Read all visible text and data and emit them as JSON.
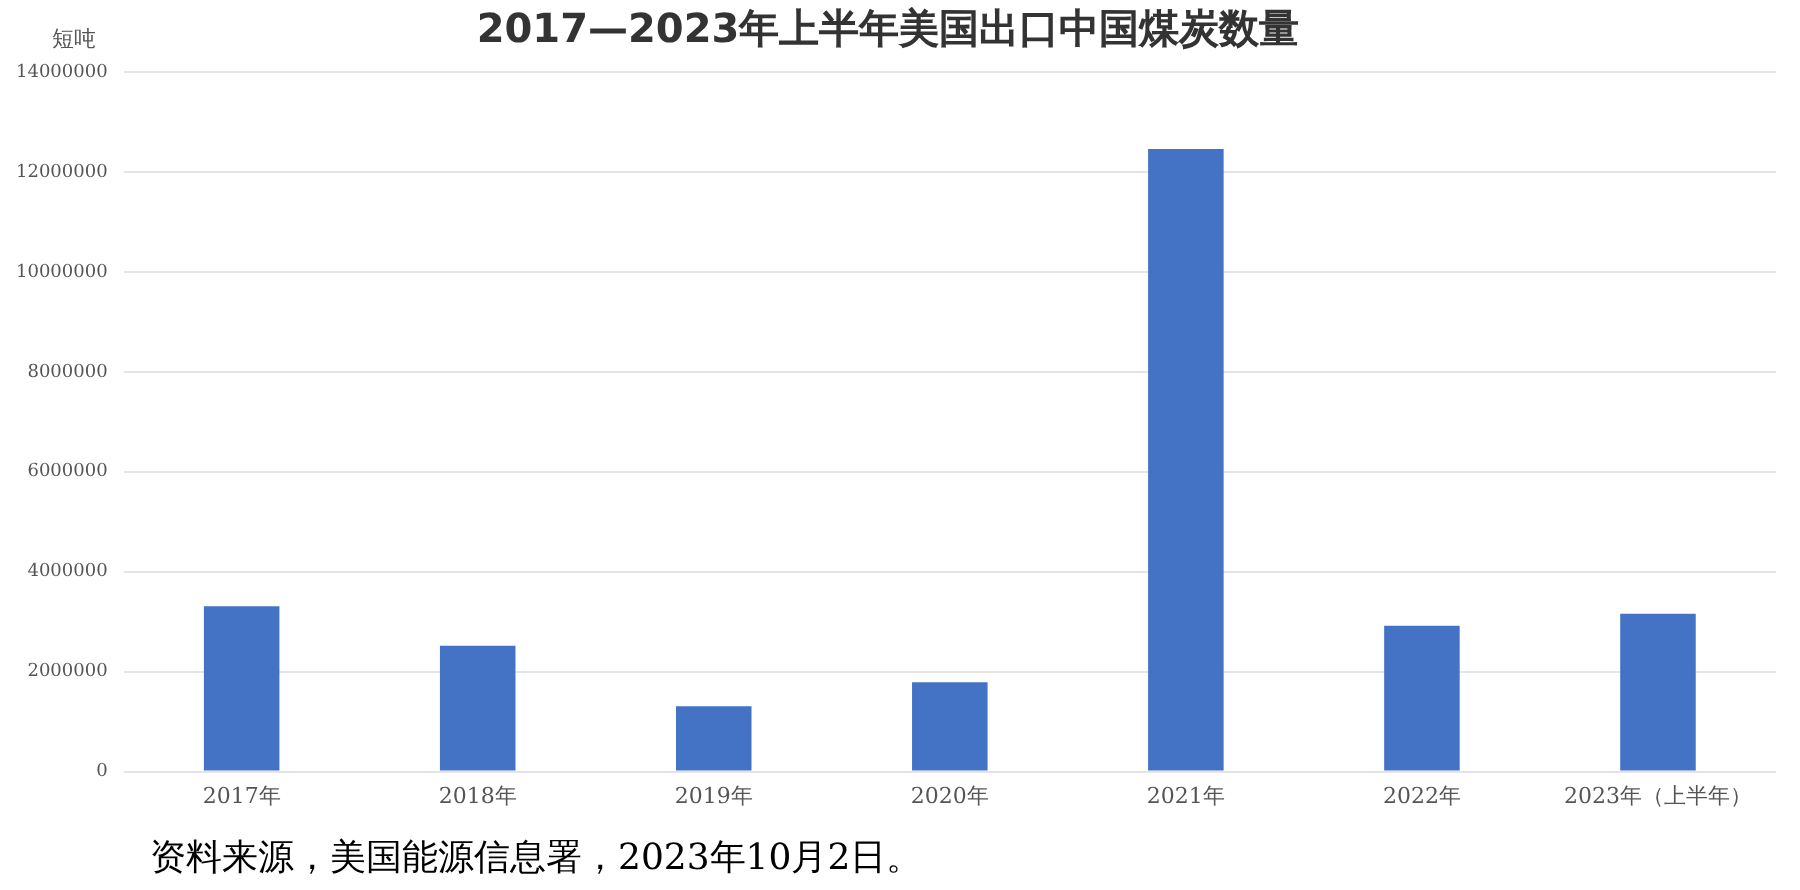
{
  "chart_data": {
    "type": "bar",
    "title": "2017—2023年上半年美国出口中国煤炭数量",
    "ylabel": "短吨",
    "categories": [
      "2017年",
      "2018年",
      "2019年",
      "2020年",
      "2021年",
      "2022年",
      "2023年（上半年）"
    ],
    "values": [
      3310000,
      2520000,
      1310000,
      1790000,
      12460000,
      2920000,
      3160000
    ],
    "color": "#4472c4",
    "ylim": [
      0,
      14000000
    ],
    "yticks": [
      0,
      2000000,
      4000000,
      6000000,
      8000000,
      10000000,
      12000000,
      14000000
    ],
    "grid": "y",
    "annotations": [
      "资料来源，美国能源信息署，2023年10月2日。"
    ]
  }
}
